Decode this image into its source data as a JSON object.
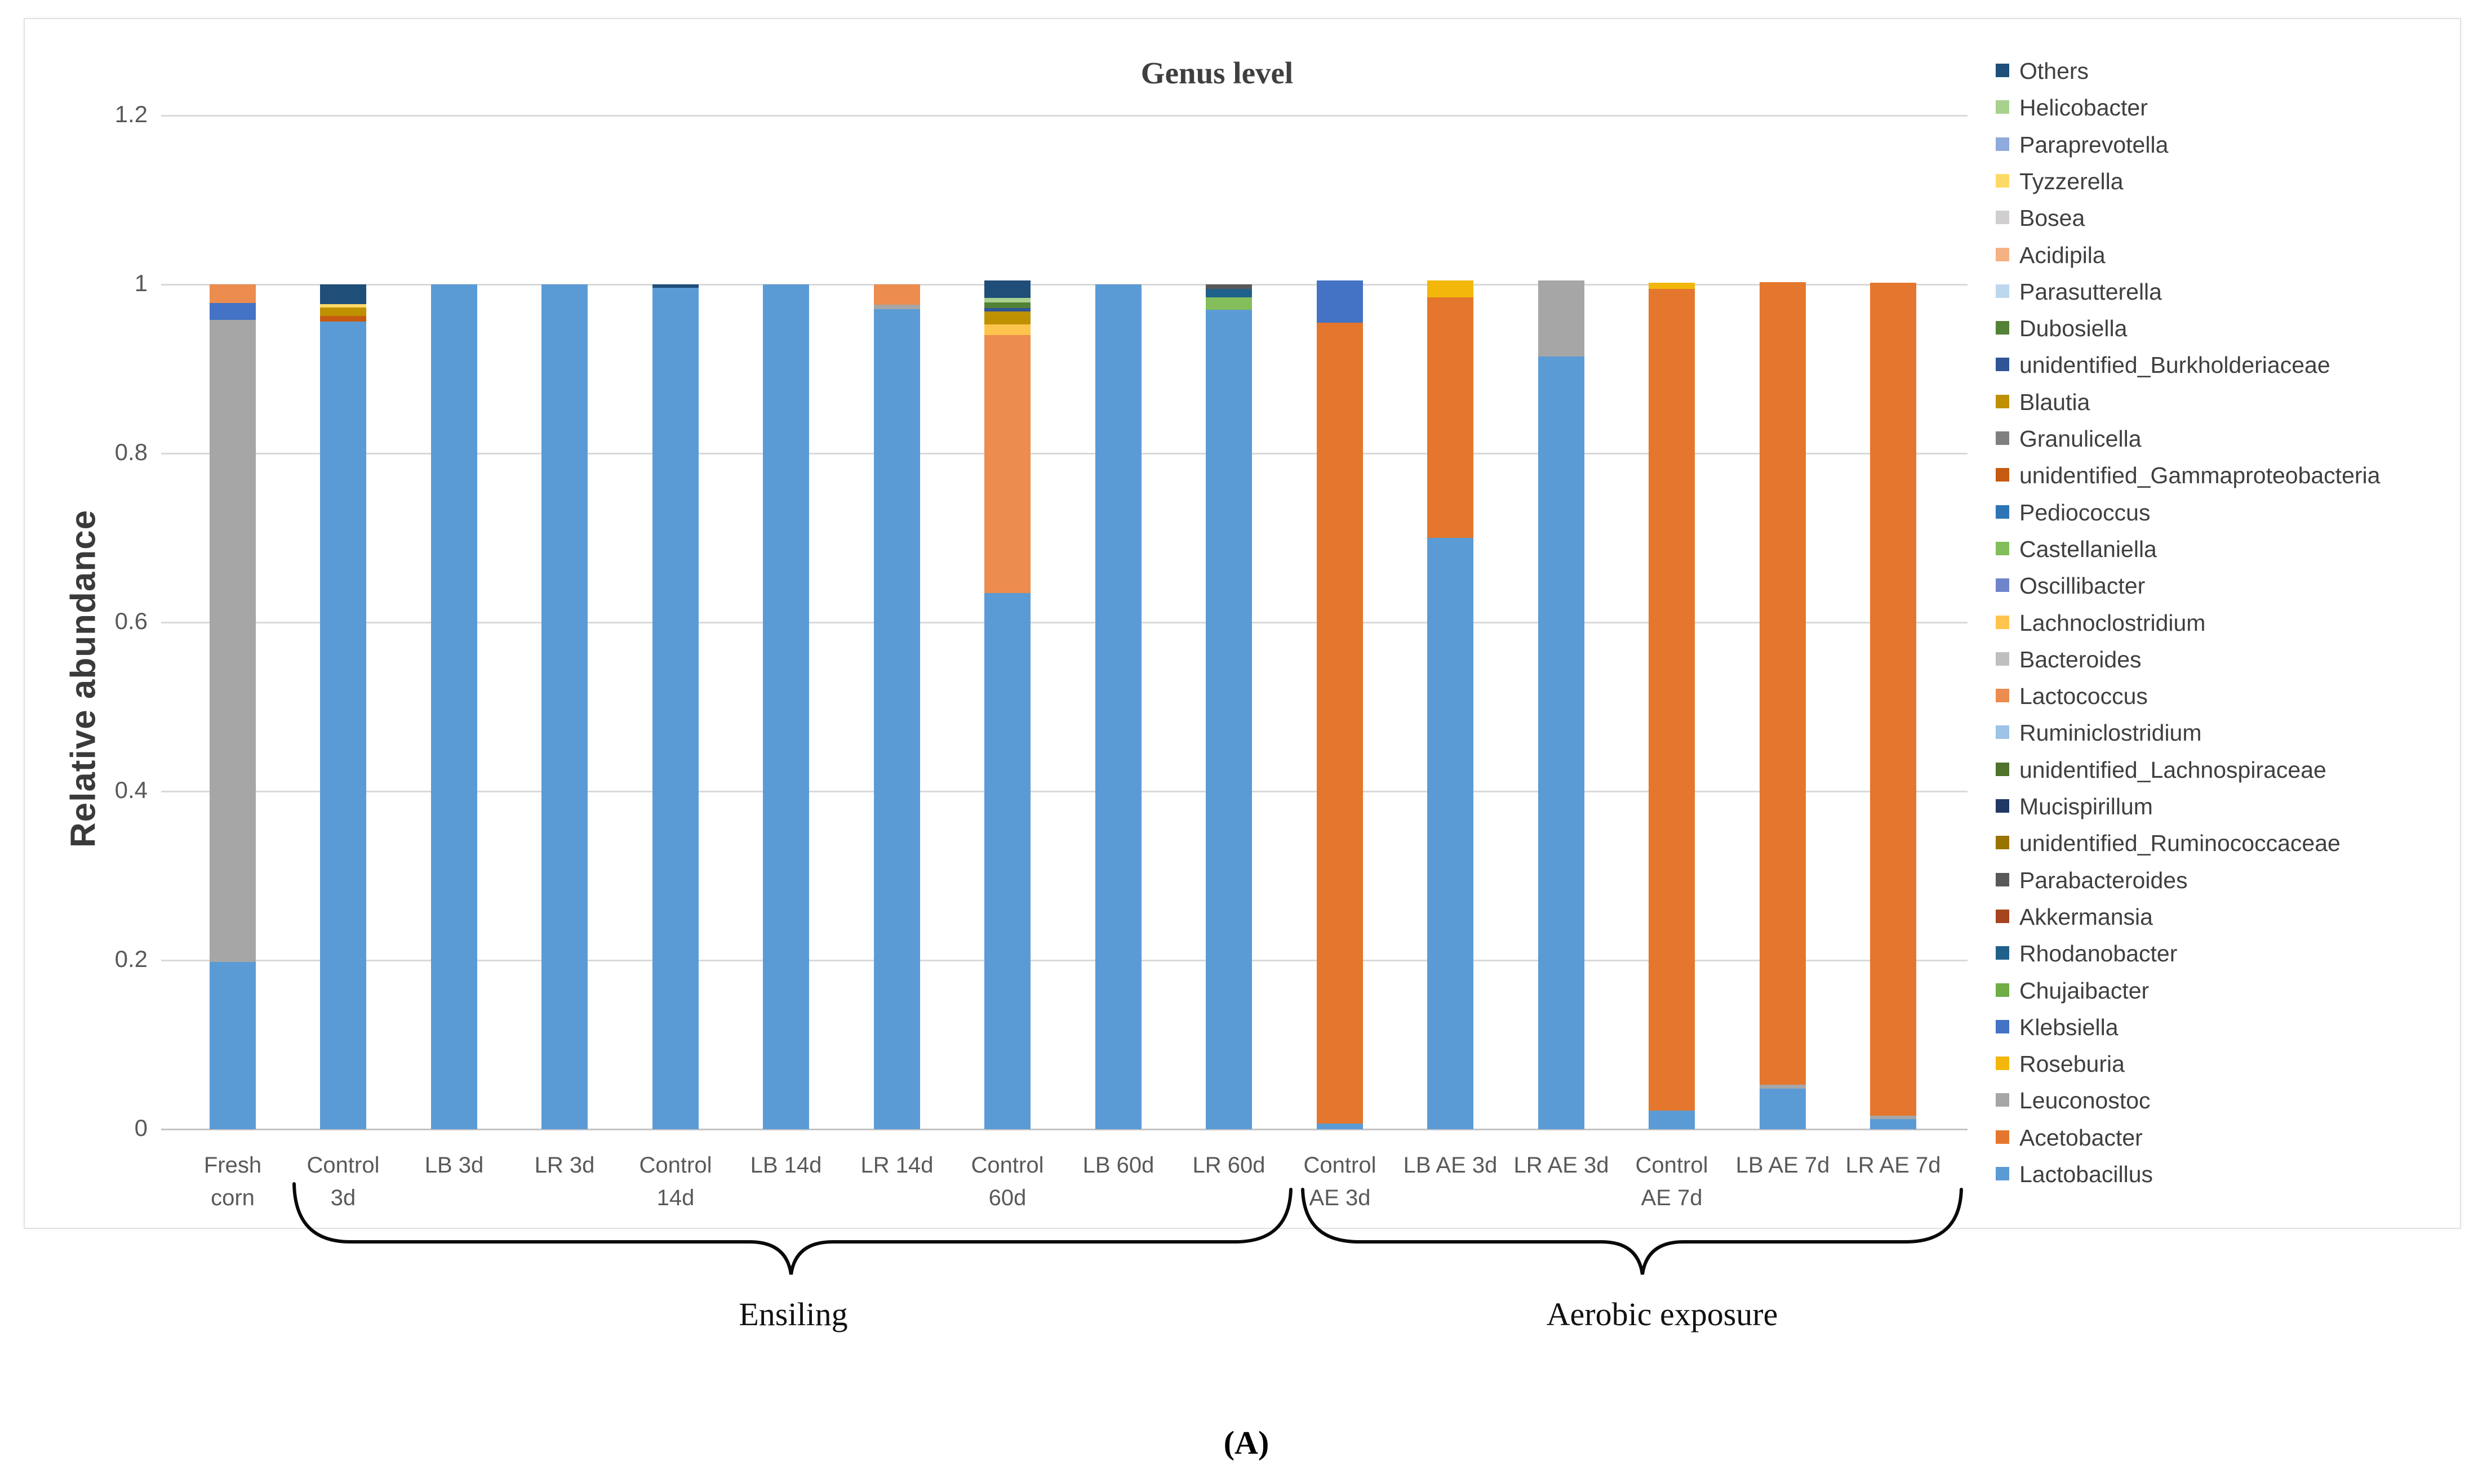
{
  "title": "Genus level",
  "ylabel": "Relative abundance",
  "caption": "(A)",
  "group_labels": {
    "ensiling": "Ensiling",
    "aerobic": "Aerobic exposure"
  },
  "chart_data": {
    "type": "bar",
    "stacked": true,
    "title": "Genus level",
    "xlabel": "",
    "ylabel": "Relative abundance",
    "ylim": [
      0,
      1.2
    ],
    "yticks": [
      "0",
      "0.2",
      "0.4",
      "0.6",
      "0.8",
      "1",
      "1.2"
    ],
    "grid": true,
    "legend_position": "right",
    "legend_note": "legend lists top-of-stack first; bars stack in reverse legend order",
    "genera": [
      {
        "name": "Others",
        "color": "#1F4E79"
      },
      {
        "name": "Helicobacter",
        "color": "#A9D18E"
      },
      {
        "name": "Paraprevotella",
        "color": "#8FAADC"
      },
      {
        "name": "Tyzzerella",
        "color": "#FFD966"
      },
      {
        "name": "Bosea",
        "color": "#D0CECE"
      },
      {
        "name": "Acidipila",
        "color": "#F4B183"
      },
      {
        "name": "Parasutterella",
        "color": "#BDD7EE"
      },
      {
        "name": "Dubosiella",
        "color": "#538135"
      },
      {
        "name": "unidentified_Burkholderiaceae",
        "color": "#2F5597"
      },
      {
        "name": "Blautia",
        "color": "#BF9000"
      },
      {
        "name": "Granulicella",
        "color": "#7F7F7F"
      },
      {
        "name": "unidentified_Gammaproteobacteria",
        "color": "#C55A11"
      },
      {
        "name": "Pediococcus",
        "color": "#2E75B6"
      },
      {
        "name": "Castellaniella",
        "color": "#84BE5A"
      },
      {
        "name": "Oscillibacter",
        "color": "#6E85C9"
      },
      {
        "name": "Lachnoclostridium",
        "color": "#FFC44D"
      },
      {
        "name": "Bacteroides",
        "color": "#BFBFBF"
      },
      {
        "name": "Lactococcus",
        "color": "#EC8C4E"
      },
      {
        "name": "Ruminiclostridium",
        "color": "#9DC3E6"
      },
      {
        "name": "unidentified_Lachnospiraceae",
        "color": "#4E732C"
      },
      {
        "name": "Mucispirillum",
        "color": "#203864"
      },
      {
        "name": "unidentified_Ruminococcaceae",
        "color": "#997300"
      },
      {
        "name": "Parabacteroides",
        "color": "#595959"
      },
      {
        "name": "Akkermansia",
        "color": "#A5441F"
      },
      {
        "name": "Rhodanobacter",
        "color": "#20618B"
      },
      {
        "name": "Chujaibacter",
        "color": "#70AD47"
      },
      {
        "name": "Klebsiella",
        "color": "#4472C4"
      },
      {
        "name": "Roseburia",
        "color": "#F2B70A"
      },
      {
        "name": "Leuconostoc",
        "color": "#A6A6A6"
      },
      {
        "name": "Acetobacter",
        "color": "#E4772D"
      },
      {
        "name": "Lactobacillus",
        "color": "#5B9BD5"
      }
    ],
    "categories": [
      "Fresh corn",
      "Control 3d",
      "LB 3d",
      "LR 3d",
      "Control 14d",
      "LB 14d",
      "LR 14d",
      "Control 60d",
      "LB 60d",
      "LR 60d",
      "Control AE 3d",
      "LB AE 3d",
      "LR AE 3d",
      "Control AE 7d",
      "LB AE 7d",
      "LR AE 7d"
    ],
    "category_label_lines": [
      [
        "Fresh",
        "corn"
      ],
      [
        "Control",
        "3d"
      ],
      [
        "LB 3d"
      ],
      [
        "LR 3d"
      ],
      [
        "Control",
        "14d"
      ],
      [
        "LB 14d"
      ],
      [
        "LR 14d"
      ],
      [
        "Control",
        "60d"
      ],
      [
        "LB 60d"
      ],
      [
        "LR 60d"
      ],
      [
        "Control",
        "AE 3d"
      ],
      [
        "LB AE 3d"
      ],
      [
        "LR AE 3d"
      ],
      [
        "Control",
        "AE 7d"
      ],
      [
        "LB AE 7d"
      ],
      [
        "LR AE 7d"
      ]
    ],
    "bars": [
      {
        "category": "Fresh corn",
        "segments": [
          {
            "genus": "Lactobacillus",
            "value": 0.198
          },
          {
            "genus": "Leuconostoc",
            "value": 0.76
          },
          {
            "genus": "Klebsiella",
            "value": 0.02
          },
          {
            "genus": "Lactococcus",
            "value": 0.022
          }
        ]
      },
      {
        "category": "Control 3d",
        "segments": [
          {
            "genus": "Lactobacillus",
            "value": 0.956
          },
          {
            "genus": "unidentified_Gammaproteobacteria",
            "value": 0.007
          },
          {
            "genus": "Blautia",
            "value": 0.01
          },
          {
            "genus": "Tyzzerella",
            "value": 0.004
          },
          {
            "genus": "Others",
            "value": 0.023
          }
        ]
      },
      {
        "category": "LB 3d",
        "segments": [
          {
            "genus": "Lactobacillus",
            "value": 1.0
          }
        ]
      },
      {
        "category": "LR 3d",
        "segments": [
          {
            "genus": "Lactobacillus",
            "value": 1.0
          }
        ]
      },
      {
        "category": "Control 14d",
        "segments": [
          {
            "genus": "Lactobacillus",
            "value": 0.996
          },
          {
            "genus": "Others",
            "value": 0.004
          }
        ]
      },
      {
        "category": "LB 14d",
        "segments": [
          {
            "genus": "Lactobacillus",
            "value": 1.0
          }
        ]
      },
      {
        "category": "LR 14d",
        "segments": [
          {
            "genus": "Lactobacillus",
            "value": 0.971
          },
          {
            "genus": "Leuconostoc",
            "value": 0.005
          },
          {
            "genus": "Lactococcus",
            "value": 0.024
          }
        ]
      },
      {
        "category": "Control 60d",
        "segments": [
          {
            "genus": "Lactobacillus",
            "value": 0.635
          },
          {
            "genus": "Lactococcus",
            "value": 0.305
          },
          {
            "genus": "Lachnoclostridium",
            "value": 0.013
          },
          {
            "genus": "Blautia",
            "value": 0.015
          },
          {
            "genus": "unidentified_Burkholderiaceae",
            "value": 0.004
          },
          {
            "genus": "Dubosiella",
            "value": 0.007
          },
          {
            "genus": "Helicobacter",
            "value": 0.005
          },
          {
            "genus": "Others",
            "value": 0.021
          }
        ]
      },
      {
        "category": "LB 60d",
        "segments": [
          {
            "genus": "Lactobacillus",
            "value": 1.0
          }
        ]
      },
      {
        "category": "LR 60d",
        "segments": [
          {
            "genus": "Lactobacillus",
            "value": 0.97
          },
          {
            "genus": "Castellaniella",
            "value": 0.015
          },
          {
            "genus": "Rhodanobacter",
            "value": 0.01
          },
          {
            "genus": "Parabacteroides",
            "value": 0.005
          }
        ]
      },
      {
        "category": "Control AE 3d",
        "segments": [
          {
            "genus": "Lactobacillus",
            "value": 0.007
          },
          {
            "genus": "Acetobacter",
            "value": 0.948
          },
          {
            "genus": "Klebsiella",
            "value": 0.05
          }
        ]
      },
      {
        "category": "LB AE 3d",
        "segments": [
          {
            "genus": "Lactobacillus",
            "value": 0.7
          },
          {
            "genus": "Acetobacter",
            "value": 0.285
          },
          {
            "genus": "Roseburia",
            "value": 0.02
          }
        ]
      },
      {
        "category": "LR AE 3d",
        "segments": [
          {
            "genus": "Lactobacillus",
            "value": 0.915
          },
          {
            "genus": "Leuconostoc",
            "value": 0.09
          }
        ]
      },
      {
        "category": "Control AE 7d",
        "segments": [
          {
            "genus": "Lactobacillus",
            "value": 0.022
          },
          {
            "genus": "Acetobacter",
            "value": 0.973
          },
          {
            "genus": "Roseburia",
            "value": 0.007
          }
        ]
      },
      {
        "category": "LB AE 7d",
        "segments": [
          {
            "genus": "Lactobacillus",
            "value": 0.048
          },
          {
            "genus": "Leuconostoc",
            "value": 0.005
          },
          {
            "genus": "Acetobacter",
            "value": 0.95
          }
        ]
      },
      {
        "category": "LR AE 7d",
        "segments": [
          {
            "genus": "Lactobacillus",
            "value": 0.012
          },
          {
            "genus": "Leuconostoc",
            "value": 0.004
          },
          {
            "genus": "Acetobacter",
            "value": 0.986
          }
        ]
      }
    ]
  }
}
